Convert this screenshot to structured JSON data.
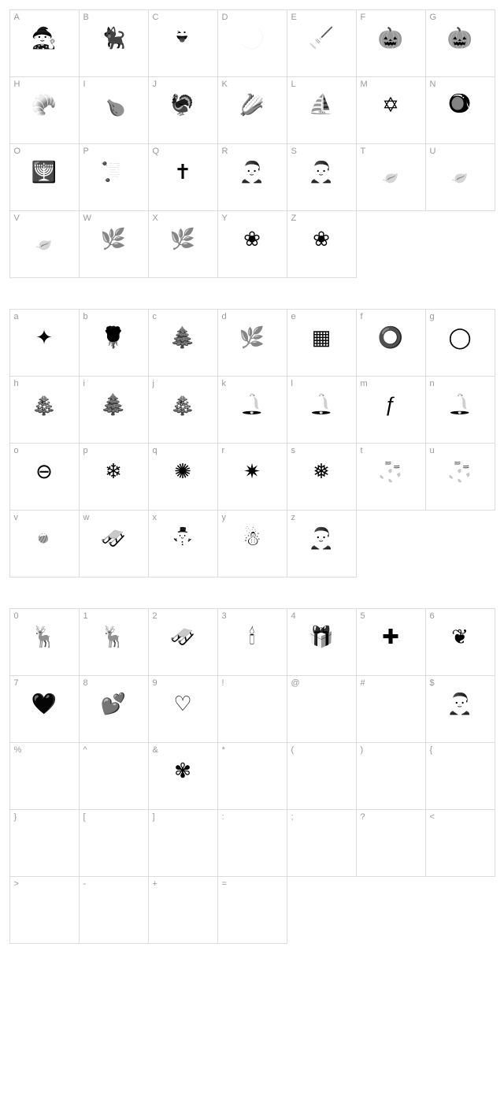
{
  "grid_cols": 7,
  "cell_border_color": "#dddddd",
  "label_color": "#999999",
  "label_fontsize": 11,
  "glyph_color": "#000000",
  "glyph_fontsize": 26,
  "background_color": "#ffffff",
  "sections": [
    {
      "name": "uppercase",
      "cells": [
        {
          "label": "A",
          "glyph": "🧙",
          "desc": "witch-silhouette"
        },
        {
          "label": "B",
          "glyph": "🐈‍⬛",
          "desc": "black-cat"
        },
        {
          "label": "C",
          "glyph": "👻",
          "desc": "ghost"
        },
        {
          "label": "D",
          "glyph": "🌙",
          "desc": "crescent-moon-face"
        },
        {
          "label": "E",
          "glyph": "🧹",
          "desc": "witch-on-broom"
        },
        {
          "label": "F",
          "glyph": "🎃",
          "desc": "pumpkin-outline"
        },
        {
          "label": "G",
          "glyph": "🎃",
          "desc": "pumpkin-filled"
        },
        {
          "label": "H",
          "glyph": "🥐",
          "desc": "cornucopia"
        },
        {
          "label": "I",
          "glyph": "🍗",
          "desc": "roast-turkey-platter"
        },
        {
          "label": "J",
          "glyph": "🦃",
          "desc": "turkey"
        },
        {
          "label": "K",
          "glyph": "🌽",
          "desc": "cornucopia-harvest"
        },
        {
          "label": "L",
          "glyph": "⛵",
          "desc": "sailing-ship"
        },
        {
          "label": "M",
          "glyph": "✡",
          "desc": "star-of-david"
        },
        {
          "label": "N",
          "glyph": "🪀",
          "desc": "dreidel"
        },
        {
          "label": "O",
          "glyph": "🕎",
          "desc": "menorah"
        },
        {
          "label": "P",
          "glyph": "📜",
          "desc": "tablets-commandments"
        },
        {
          "label": "Q",
          "glyph": "✝",
          "desc": "ornate-cross"
        },
        {
          "label": "R",
          "glyph": "🎅",
          "desc": "santa-figure"
        },
        {
          "label": "S",
          "glyph": "🎅",
          "desc": "santa-figure-2"
        },
        {
          "label": "T",
          "glyph": "🍃",
          "desc": "holly-leaves"
        },
        {
          "label": "U",
          "glyph": "🍃",
          "desc": "holly-leaves-2"
        },
        {
          "label": "V",
          "glyph": "🍃",
          "desc": "holly-leaves-3"
        },
        {
          "label": "W",
          "glyph": "🌿",
          "desc": "leaf-flourish-left"
        },
        {
          "label": "X",
          "glyph": "🌿",
          "desc": "leaf-flourish-right"
        },
        {
          "label": "Y",
          "glyph": "❀",
          "desc": "decorative-leaf"
        },
        {
          "label": "Z",
          "glyph": "❀",
          "desc": "decorative-leaf-2"
        }
      ]
    },
    {
      "name": "lowercase",
      "cells": [
        {
          "label": "a",
          "glyph": "✦",
          "desc": "decorative-square"
        },
        {
          "label": "b",
          "glyph": "🌹",
          "desc": "rose-stem"
        },
        {
          "label": "c",
          "glyph": "🌲",
          "desc": "pine-branch"
        },
        {
          "label": "d",
          "glyph": "🌿",
          "desc": "branch-sprig"
        },
        {
          "label": "e",
          "glyph": "▦",
          "desc": "ornate-square"
        },
        {
          "label": "f",
          "glyph": "⭕",
          "desc": "wreath-outline"
        },
        {
          "label": "g",
          "glyph": "◯",
          "desc": "wreath"
        },
        {
          "label": "h",
          "glyph": "🎄",
          "desc": "christmas-tree"
        },
        {
          "label": "i",
          "glyph": "🌲",
          "desc": "pine-tree"
        },
        {
          "label": "j",
          "glyph": "🎄",
          "desc": "decorated-tree"
        },
        {
          "label": "k",
          "glyph": "🔔",
          "desc": "bells-pair"
        },
        {
          "label": "l",
          "glyph": "🔔",
          "desc": "bell"
        },
        {
          "label": "m",
          "glyph": "ƒ",
          "desc": "decorative-script"
        },
        {
          "label": "n",
          "glyph": "🔔",
          "desc": "bells-ribbon"
        },
        {
          "label": "o",
          "glyph": "⊖",
          "desc": "ornament-ball"
        },
        {
          "label": "p",
          "glyph": "❄",
          "desc": "snowflake-simple"
        },
        {
          "label": "q",
          "glyph": "✺",
          "desc": "starburst"
        },
        {
          "label": "r",
          "glyph": "✷",
          "desc": "star-8pt"
        },
        {
          "label": "s",
          "glyph": "❅",
          "desc": "snowflake-ornate"
        },
        {
          "label": "t",
          "glyph": "🧦",
          "desc": "stocking"
        },
        {
          "label": "u",
          "glyph": "🧦",
          "desc": "stocking-2"
        },
        {
          "label": "v",
          "glyph": "🍬",
          "desc": "candy-cane"
        },
        {
          "label": "w",
          "glyph": "🛷",
          "desc": "sled"
        },
        {
          "label": "x",
          "glyph": "⛄",
          "desc": "snowman-small"
        },
        {
          "label": "y",
          "glyph": "☃",
          "desc": "snowman"
        },
        {
          "label": "z",
          "glyph": "🎅",
          "desc": "santa-face"
        }
      ]
    },
    {
      "name": "numbers-symbols",
      "cells": [
        {
          "label": "0",
          "glyph": "🦌",
          "desc": "reindeer"
        },
        {
          "label": "1",
          "glyph": "🦌",
          "desc": "reindeer-2"
        },
        {
          "label": "2",
          "glyph": "🛷",
          "desc": "sleigh"
        },
        {
          "label": "3",
          "glyph": "🕯",
          "desc": "candle"
        },
        {
          "label": "4",
          "glyph": "🎁",
          "desc": "gift-box"
        },
        {
          "label": "5",
          "glyph": "✚",
          "desc": "cross-plus"
        },
        {
          "label": "6",
          "glyph": "❦",
          "desc": "ornamental"
        },
        {
          "label": "7",
          "glyph": "🖤",
          "desc": "hearts-filled"
        },
        {
          "label": "8",
          "glyph": "💕",
          "desc": "hearts-outline-arrow"
        },
        {
          "label": "9",
          "glyph": "♡",
          "desc": "heart-outline"
        },
        {
          "label": "!",
          "glyph": "",
          "desc": "empty"
        },
        {
          "label": "@",
          "glyph": "",
          "desc": "empty"
        },
        {
          "label": "#",
          "glyph": "",
          "desc": "empty"
        },
        {
          "label": "$",
          "glyph": "🎅",
          "desc": "santa-small"
        },
        {
          "label": "%",
          "glyph": "",
          "desc": "empty"
        },
        {
          "label": "^",
          "glyph": "",
          "desc": "empty"
        },
        {
          "label": "&",
          "glyph": "✾",
          "desc": "floral-ornament"
        },
        {
          "label": "*",
          "glyph": "",
          "desc": "empty"
        },
        {
          "label": "(",
          "glyph": "",
          "desc": "empty"
        },
        {
          "label": ")",
          "glyph": "",
          "desc": "empty"
        },
        {
          "label": "{",
          "glyph": "",
          "desc": "empty"
        },
        {
          "label": "}",
          "glyph": "",
          "desc": "empty"
        },
        {
          "label": "[",
          "glyph": "",
          "desc": "empty"
        },
        {
          "label": "]",
          "glyph": "",
          "desc": "empty"
        },
        {
          "label": ":",
          "glyph": "",
          "desc": "empty"
        },
        {
          "label": ";",
          "glyph": "",
          "desc": "empty"
        },
        {
          "label": "?",
          "glyph": "",
          "desc": "empty"
        },
        {
          "label": "<",
          "glyph": "",
          "desc": "empty"
        },
        {
          "label": ">",
          "glyph": "",
          "desc": "empty"
        },
        {
          "label": "-",
          "glyph": "",
          "desc": "empty"
        },
        {
          "label": "+",
          "glyph": "",
          "desc": "empty"
        },
        {
          "label": "=",
          "glyph": "",
          "desc": "empty"
        }
      ]
    }
  ]
}
